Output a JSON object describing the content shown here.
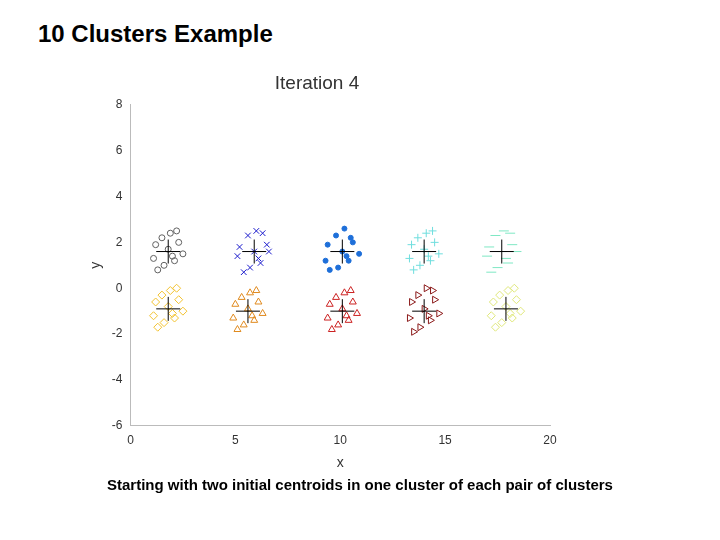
{
  "title": "10 Clusters Example",
  "caption": "Starting with two initial centroids in one cluster of each pair of clusters",
  "chart_data": {
    "type": "scatter",
    "title": "Iteration 4",
    "x_label": "x",
    "y_label": "y",
    "xlim": [
      0,
      20
    ],
    "ylim": [
      -6,
      8
    ],
    "xticks": [
      0,
      5,
      10,
      15,
      20
    ],
    "yticks": [
      -6,
      -4,
      -2,
      0,
      2,
      4,
      6,
      8
    ],
    "grid": false,
    "series": [
      {
        "color": "#000000",
        "marker": "cross",
        "x": [
          1.8,
          5.9,
          10.1,
          14.0,
          17.7,
          1.8,
          5.6,
          10.1,
          14.0,
          17.9
        ],
        "values": [
          1.6,
          1.6,
          1.6,
          1.6,
          1.6,
          -0.9,
          -1.0,
          -1.0,
          -1.0,
          -0.9
        ]
      },
      {
        "color": "#606060",
        "marker": "circle",
        "x": [
          1.2,
          1.5,
          1.9,
          2.3,
          2.5,
          2.1,
          1.6,
          1.1,
          1.8,
          2.2,
          1.3,
          2.0
        ],
        "values": [
          1.9,
          2.2,
          2.4,
          2.0,
          1.5,
          1.2,
          1.0,
          1.3,
          1.7,
          2.5,
          0.8,
          1.4
        ]
      },
      {
        "color": "#1a1acc",
        "marker": "x",
        "x": [
          5.2,
          5.6,
          6.0,
          6.5,
          6.6,
          6.2,
          5.7,
          5.1,
          5.9,
          6.3,
          5.4,
          6.1
        ],
        "values": [
          1.8,
          2.3,
          2.5,
          1.9,
          1.6,
          1.1,
          0.9,
          1.4,
          1.6,
          2.4,
          0.7,
          1.3
        ]
      },
      {
        "color": "#1e6fd9",
        "marker": "dot",
        "x": [
          9.4,
          9.8,
          10.2,
          10.6,
          10.9,
          10.4,
          9.9,
          9.3,
          10.1,
          10.5,
          9.5,
          10.3
        ],
        "values": [
          1.9,
          2.3,
          2.6,
          2.0,
          1.5,
          1.2,
          0.9,
          1.2,
          1.6,
          2.2,
          0.8,
          1.4
        ]
      },
      {
        "color": "#6fdede",
        "marker": "plus",
        "x": [
          13.4,
          13.7,
          14.1,
          14.5,
          14.7,
          14.3,
          13.8,
          13.3,
          14.0,
          14.4,
          13.5,
          14.2
        ],
        "values": [
          1.9,
          2.2,
          2.4,
          2.0,
          1.5,
          1.2,
          1.0,
          1.3,
          1.7,
          2.5,
          0.8,
          1.4
        ]
      },
      {
        "color": "#7fe8c4",
        "marker": "dash",
        "x": [
          17.1,
          17.4,
          17.8,
          18.2,
          18.4,
          18.0,
          17.5,
          17.0,
          17.7,
          18.1,
          17.2,
          17.9
        ],
        "values": [
          1.8,
          2.3,
          2.5,
          1.9,
          1.6,
          1.1,
          0.9,
          1.4,
          1.6,
          2.4,
          0.7,
          1.3
        ]
      },
      {
        "color": "#f2c230",
        "marker": "diamond",
        "x": [
          1.2,
          1.5,
          1.9,
          2.3,
          2.5,
          2.1,
          1.6,
          1.1,
          1.8,
          2.2,
          1.3,
          2.0
        ],
        "values": [
          -0.6,
          -0.3,
          -0.1,
          -0.5,
          -1.0,
          -1.3,
          -1.5,
          -1.2,
          -0.8,
          0.0,
          -1.7,
          -1.1
        ]
      },
      {
        "color": "#e08a1e",
        "marker": "triangle",
        "x": [
          5.0,
          5.3,
          5.7,
          6.1,
          6.3,
          5.9,
          5.4,
          4.9,
          5.6,
          6.0,
          5.1,
          5.8
        ],
        "values": [
          -0.7,
          -0.4,
          -0.2,
          -0.6,
          -1.1,
          -1.4,
          -1.6,
          -1.3,
          -0.9,
          -0.1,
          -1.8,
          -1.2
        ]
      },
      {
        "color": "#cc2222",
        "marker": "triangle",
        "x": [
          9.5,
          9.8,
          10.2,
          10.6,
          10.8,
          10.4,
          9.9,
          9.4,
          10.1,
          10.5,
          9.6,
          10.3
        ],
        "values": [
          -0.7,
          -0.4,
          -0.2,
          -0.6,
          -1.1,
          -1.4,
          -1.6,
          -1.3,
          -0.9,
          -0.1,
          -1.8,
          -1.2
        ]
      },
      {
        "color": "#8b1a1a",
        "marker": "triangle_right",
        "x": [
          13.4,
          13.7,
          14.1,
          14.5,
          14.7,
          14.3,
          13.8,
          13.3,
          14.0,
          14.4,
          13.5,
          14.2
        ],
        "values": [
          -0.6,
          -0.3,
          0.0,
          -0.5,
          -1.1,
          -1.4,
          -1.7,
          -1.3,
          -0.9,
          -0.1,
          -1.9,
          -1.2
        ]
      },
      {
        "color": "#dfe77a",
        "marker": "diamond",
        "x": [
          17.3,
          17.6,
          18.0,
          18.4,
          18.6,
          18.2,
          17.7,
          17.2,
          17.9,
          18.3,
          17.4,
          18.1
        ],
        "values": [
          -0.6,
          -0.3,
          -0.1,
          -0.5,
          -1.0,
          -1.3,
          -1.5,
          -1.2,
          -0.8,
          0.0,
          -1.7,
          -1.1
        ]
      }
    ]
  }
}
